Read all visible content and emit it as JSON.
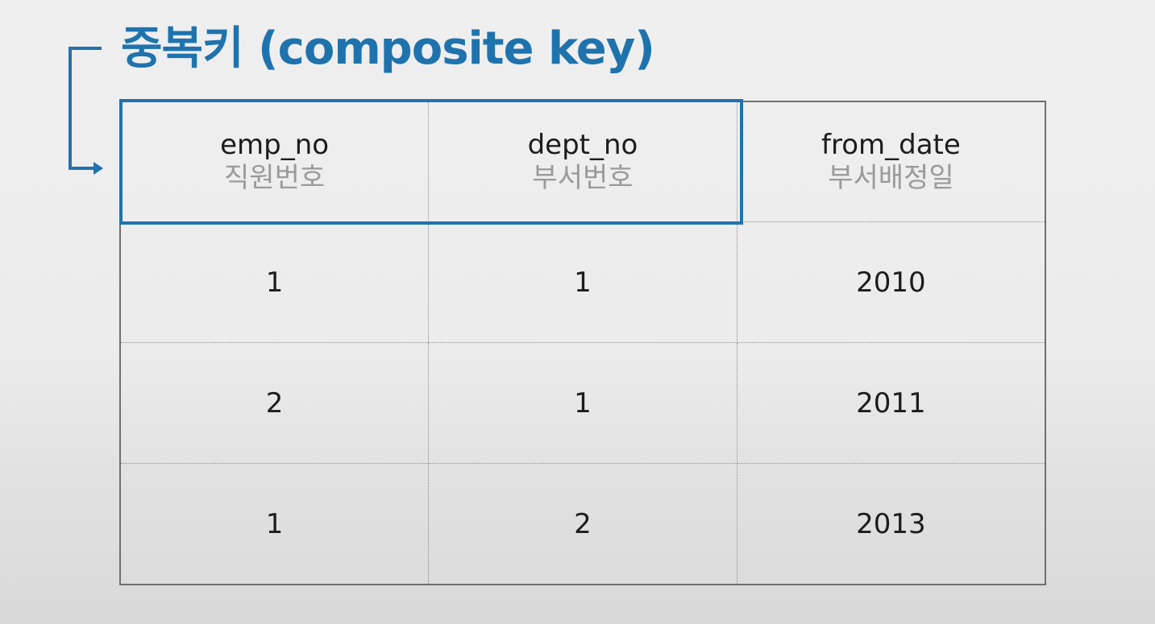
{
  "title": "중복키 (composite key)",
  "colors": {
    "accent": "#1f73ad",
    "label_gray": "#9a9a9a",
    "text": "#1c1c1c"
  },
  "table": {
    "columns": [
      {
        "name": "emp_no",
        "label": "직원번호"
      },
      {
        "name": "dept_no",
        "label": "부서번호"
      },
      {
        "name": "from_date",
        "label": "부서배정일"
      }
    ],
    "rows": [
      [
        "1",
        "1",
        "2010"
      ],
      [
        "2",
        "1",
        "2011"
      ],
      [
        "1",
        "2",
        "2013"
      ]
    ]
  }
}
